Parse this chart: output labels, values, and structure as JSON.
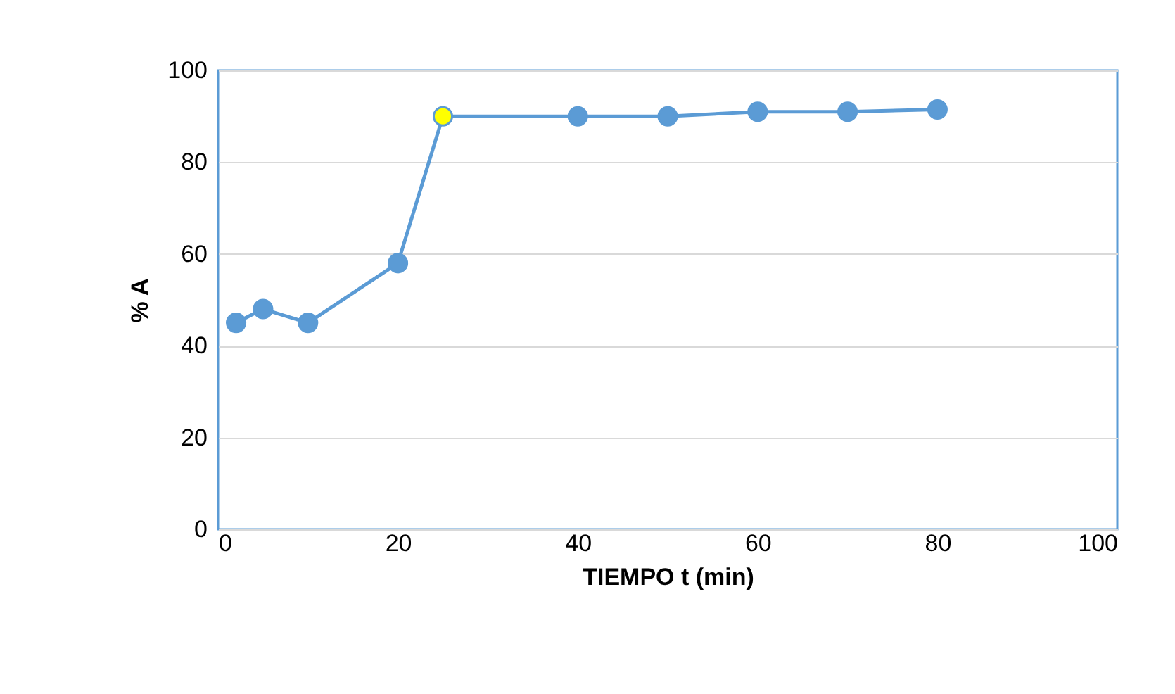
{
  "chart_data": {
    "type": "line",
    "xlabel": "TIEMPO t (min)",
    "ylabel": "% A",
    "x": [
      2,
      5,
      10,
      20,
      25,
      40,
      50,
      60,
      70,
      80
    ],
    "series": [
      {
        "color": "#5b9bd5",
        "colors": [
          "#5b9bd5",
          "#5b9bd5",
          "#5b9bd5",
          "#5b9bd5",
          "#ffff00",
          "#5b9bd5",
          "#5b9bd5",
          "#5b9bd5",
          "#5b9bd5",
          "#5b9bd5"
        ],
        "values": [
          45,
          48,
          45,
          58,
          90,
          90,
          90,
          91,
          91,
          91.5
        ]
      }
    ],
    "xlim": [
      0,
      100
    ],
    "xticks": [
      0,
      20,
      40,
      60,
      80,
      100
    ],
    "ylim": [
      0,
      100
    ],
    "yticks": [
      0,
      20,
      40,
      60,
      80,
      100
    ],
    "grid": "y",
    "marker": "circle",
    "line_style": "solid"
  }
}
